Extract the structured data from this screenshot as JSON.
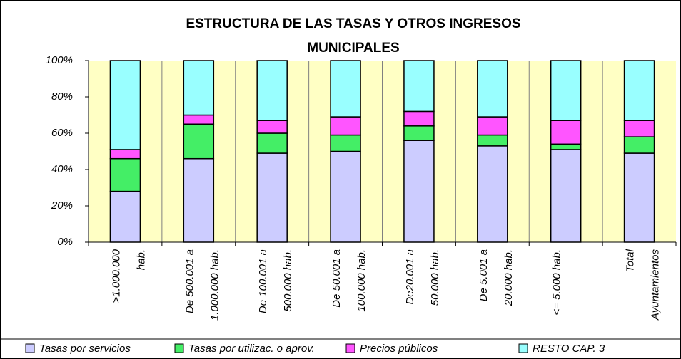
{
  "chart_data": {
    "type": "stacked_bar",
    "title": [
      "ESTRUCTURA DE LAS TASAS Y OTROS INGRESOS",
      "MUNICIPALES"
    ],
    "categories": [
      [
        ">1.000.000",
        "hab."
      ],
      [
        "De 500.001 a",
        "1.000.000 hab."
      ],
      [
        "De 100.001 a",
        "500.000 hab."
      ],
      [
        "De 50.001 a",
        "100.000 hab."
      ],
      [
        "De20.001 a",
        "50.000 hab."
      ],
      [
        "De 5.001 a",
        "20.000 hab."
      ],
      [
        "<= 5.000 hab."
      ],
      [
        "Total",
        "Ayuntamientos"
      ]
    ],
    "series": [
      {
        "name": "Tasas por servicios",
        "color": "#ccccff",
        "values": [
          28,
          46,
          49,
          50,
          56,
          53,
          51,
          49
        ]
      },
      {
        "name": "Tasas por utilizac.  o aprov.",
        "color": "#44ee66",
        "values": [
          18,
          19,
          11,
          9,
          8,
          6,
          3,
          9
        ]
      },
      {
        "name": "Precios públicos",
        "color": "#ff55ff",
        "values": [
          5,
          5,
          7,
          10,
          8,
          10,
          13,
          9
        ]
      },
      {
        "name": "RESTO CAP. 3",
        "color": "#99ffff",
        "values": [
          49,
          30,
          33,
          31,
          28,
          31,
          33,
          33
        ]
      }
    ],
    "ylim": [
      0,
      100
    ],
    "yticks": [
      {
        "value": 0,
        "label": "0%"
      },
      {
        "value": 20,
        "label": "20%"
      },
      {
        "value": 40,
        "label": "40%"
      },
      {
        "value": 60,
        "label": "60%"
      },
      {
        "value": 80,
        "label": "80%"
      },
      {
        "value": 100,
        "label": "100%"
      }
    ],
    "legend": "bottom"
  }
}
